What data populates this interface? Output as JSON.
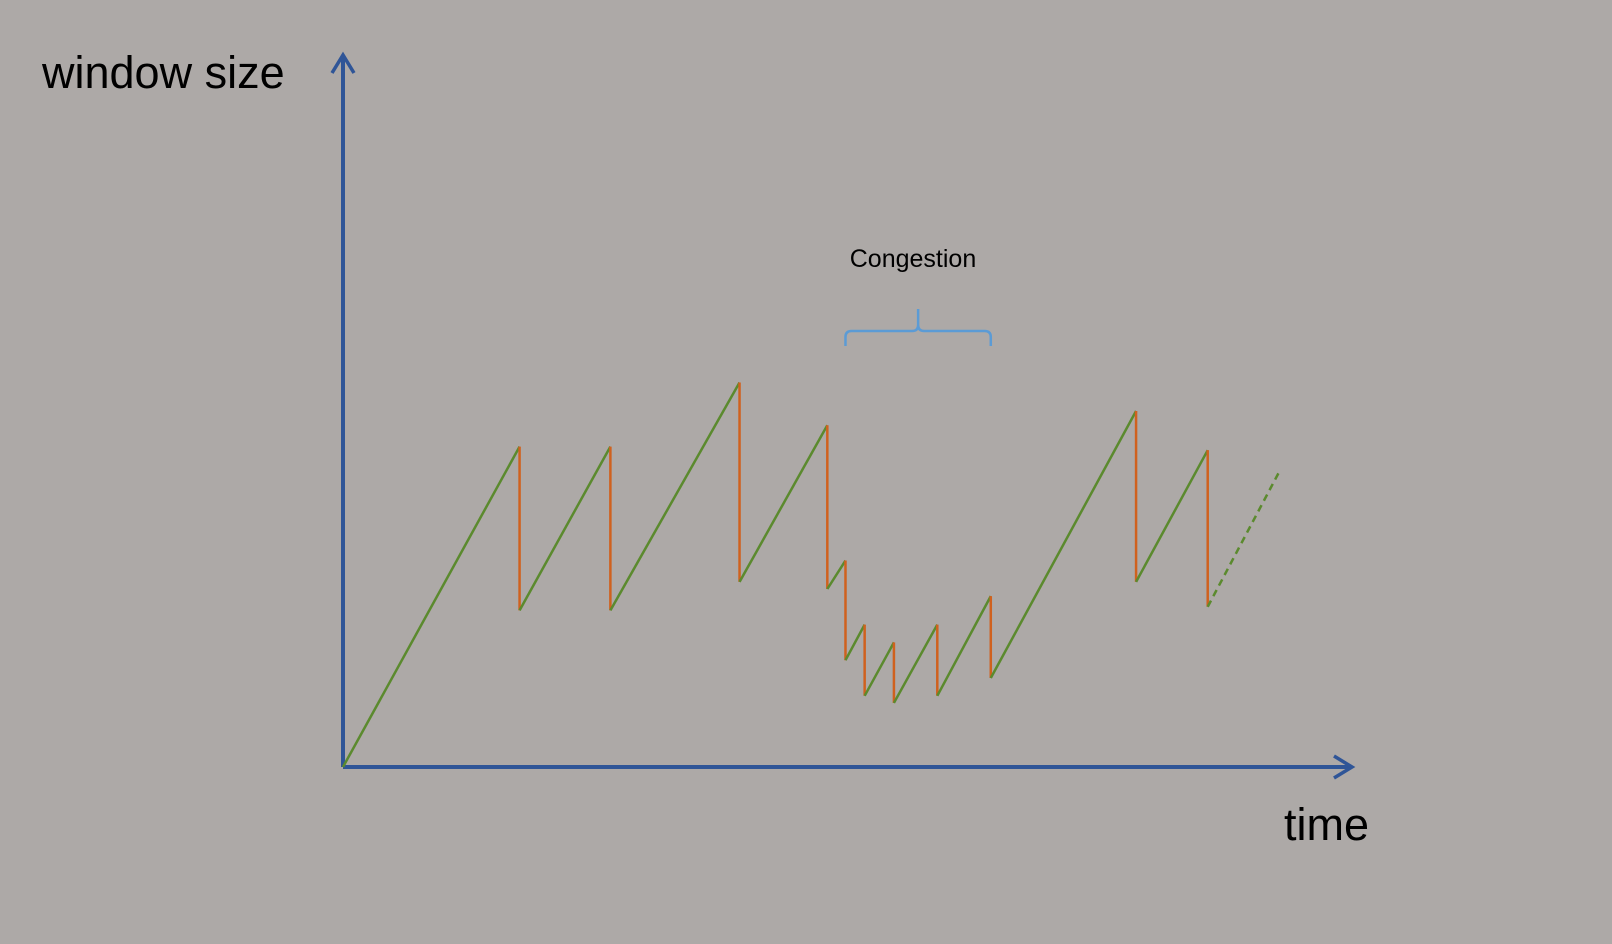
{
  "labels": {
    "y_axis": "window size",
    "x_axis": "time",
    "annotation": "Congestion"
  },
  "colors": {
    "background": "#ada9a7",
    "axis": "#2f5597",
    "increase": "#5b8a2e",
    "decrease": "#d0611e",
    "brace": "#5b9bd5"
  },
  "chart_data": {
    "type": "line",
    "series": [
      {
        "x": [
          0,
          17.5,
          17.5,
          26.5,
          26.5,
          39.3,
          39.3,
          48,
          48,
          49.8,
          49.8,
          51.7,
          51.7,
          54.6,
          54.6,
          58.9,
          58.9,
          64.2,
          64.2,
          78.6,
          78.6,
          85.7,
          85.7
        ],
        "y": [
          0,
          45,
          22,
          45,
          22,
          54,
          26,
          48,
          25,
          29,
          15,
          20,
          10,
          17.5,
          9,
          20,
          10,
          24,
          12.5,
          50,
          26,
          44.5,
          22.5
        ],
        "projected_to": {
          "x": 92.8,
          "y": 41.5
        }
      }
    ],
    "xlim": [
      0,
      100
    ],
    "ylim": [
      0,
      100
    ],
    "grid": false,
    "annotation_span": [
      49.8,
      64.2
    ]
  }
}
